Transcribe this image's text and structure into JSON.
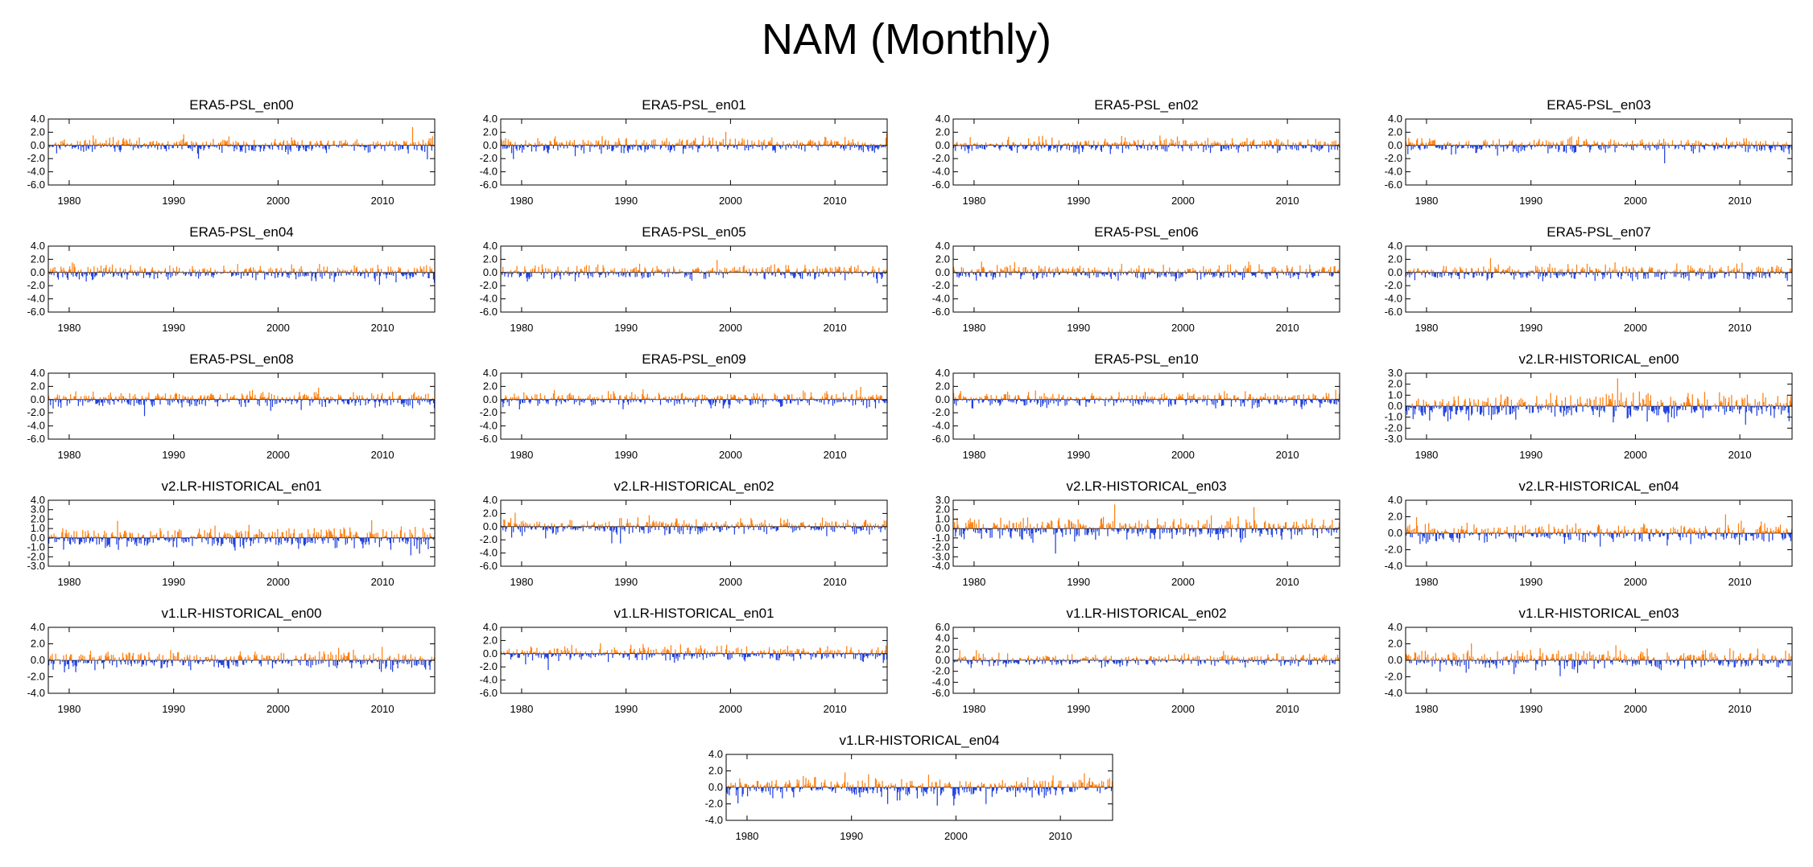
{
  "title": "NAM (Monthly)",
  "colors": {
    "positive": "#ff7f0e",
    "negative": "#1f3fdf",
    "axis": "#000000"
  },
  "chart_data": [
    {
      "type": "bar",
      "title": "ERA5-PSL_en00",
      "seed": 1,
      "ylim": [
        -6,
        4
      ],
      "yticks": [
        "4.0",
        "2.0",
        "0.0",
        "-2.0",
        "-4.0",
        "-6.0"
      ],
      "xlim": [
        1978,
        2015
      ],
      "xticks": [
        "1980",
        "1990",
        "2000",
        "2010"
      ]
    },
    {
      "type": "bar",
      "title": "ERA5-PSL_en01",
      "seed": 2,
      "ylim": [
        -6,
        4
      ],
      "yticks": [
        "4.0",
        "2.0",
        "0.0",
        "-2.0",
        "-4.0",
        "-6.0"
      ],
      "xlim": [
        1978,
        2015
      ],
      "xticks": [
        "1980",
        "1990",
        "2000",
        "2010"
      ]
    },
    {
      "type": "bar",
      "title": "ERA5-PSL_en02",
      "seed": 3,
      "ylim": [
        -6,
        4
      ],
      "yticks": [
        "4.0",
        "2.0",
        "0.0",
        "-2.0",
        "-4.0",
        "-6.0"
      ],
      "xlim": [
        1978,
        2015
      ],
      "xticks": [
        "1980",
        "1990",
        "2000",
        "2010"
      ]
    },
    {
      "type": "bar",
      "title": "ERA5-PSL_en03",
      "seed": 4,
      "ylim": [
        -6,
        4
      ],
      "yticks": [
        "4.0",
        "2.0",
        "0.0",
        "-2.0",
        "-4.0",
        "-6.0"
      ],
      "xlim": [
        1978,
        2015
      ],
      "xticks": [
        "1980",
        "1990",
        "2000",
        "2010"
      ]
    },
    {
      "type": "bar",
      "title": "ERA5-PSL_en04",
      "seed": 5,
      "ylim": [
        -6,
        4
      ],
      "yticks": [
        "4.0",
        "2.0",
        "0.0",
        "-2.0",
        "-4.0",
        "-6.0"
      ],
      "xlim": [
        1978,
        2015
      ],
      "xticks": [
        "1980",
        "1990",
        "2000",
        "2010"
      ]
    },
    {
      "type": "bar",
      "title": "ERA5-PSL_en05",
      "seed": 6,
      "ylim": [
        -6,
        4
      ],
      "yticks": [
        "4.0",
        "2.0",
        "0.0",
        "-2.0",
        "-4.0",
        "-6.0"
      ],
      "xlim": [
        1978,
        2015
      ],
      "xticks": [
        "1980",
        "1990",
        "2000",
        "2010"
      ]
    },
    {
      "type": "bar",
      "title": "ERA5-PSL_en06",
      "seed": 7,
      "ylim": [
        -6,
        4
      ],
      "yticks": [
        "4.0",
        "2.0",
        "0.0",
        "-2.0",
        "-4.0",
        "-6.0"
      ],
      "xlim": [
        1978,
        2015
      ],
      "xticks": [
        "1980",
        "1990",
        "2000",
        "2010"
      ]
    },
    {
      "type": "bar",
      "title": "ERA5-PSL_en07",
      "seed": 8,
      "ylim": [
        -6,
        4
      ],
      "yticks": [
        "4.0",
        "2.0",
        "0.0",
        "-2.0",
        "-4.0",
        "-6.0"
      ],
      "xlim": [
        1978,
        2015
      ],
      "xticks": [
        "1980",
        "1990",
        "2000",
        "2010"
      ]
    },
    {
      "type": "bar",
      "title": "ERA5-PSL_en08",
      "seed": 9,
      "ylim": [
        -6,
        4
      ],
      "yticks": [
        "4.0",
        "2.0",
        "0.0",
        "-2.0",
        "-4.0",
        "-6.0"
      ],
      "xlim": [
        1978,
        2015
      ],
      "xticks": [
        "1980",
        "1990",
        "2000",
        "2010"
      ]
    },
    {
      "type": "bar",
      "title": "ERA5-PSL_en09",
      "seed": 10,
      "ylim": [
        -6,
        4
      ],
      "yticks": [
        "4.0",
        "2.0",
        "0.0",
        "-2.0",
        "-4.0",
        "-6.0"
      ],
      "xlim": [
        1978,
        2015
      ],
      "xticks": [
        "1980",
        "1990",
        "2000",
        "2010"
      ]
    },
    {
      "type": "bar",
      "title": "ERA5-PSL_en10",
      "seed": 11,
      "ylim": [
        -6,
        4
      ],
      "yticks": [
        "4.0",
        "2.0",
        "0.0",
        "-2.0",
        "-4.0",
        "-6.0"
      ],
      "xlim": [
        1978,
        2015
      ],
      "xticks": [
        "1980",
        "1990",
        "2000",
        "2010"
      ]
    },
    {
      "type": "bar",
      "title": "v2.LR-HISTORICAL_en00",
      "seed": 12,
      "ylim": [
        -3,
        3
      ],
      "yticks": [
        "3.0",
        "2.0",
        "1.0",
        "0.0",
        "-1.0",
        "-2.0",
        "-3.0"
      ],
      "xlim": [
        1978,
        2015
      ],
      "xticks": [
        "1980",
        "1990",
        "2000",
        "2010"
      ]
    },
    {
      "type": "bar",
      "title": "v2.LR-HISTORICAL_en01",
      "seed": 13,
      "ylim": [
        -3,
        4
      ],
      "yticks": [
        "4.0",
        "3.0",
        "2.0",
        "1.0",
        "0.0",
        "-1.0",
        "-2.0",
        "-3.0"
      ],
      "xlim": [
        1978,
        2015
      ],
      "xticks": [
        "1980",
        "1990",
        "2000",
        "2010"
      ]
    },
    {
      "type": "bar",
      "title": "v2.LR-HISTORICAL_en02",
      "seed": 14,
      "ylim": [
        -6,
        4
      ],
      "yticks": [
        "4.0",
        "2.0",
        "0.0",
        "-2.0",
        "-4.0",
        "-6.0"
      ],
      "xlim": [
        1978,
        2015
      ],
      "xticks": [
        "1980",
        "1990",
        "2000",
        "2010"
      ]
    },
    {
      "type": "bar",
      "title": "v2.LR-HISTORICAL_en03",
      "seed": 15,
      "ylim": [
        -4,
        3
      ],
      "yticks": [
        "3.0",
        "2.0",
        "1.0",
        "0.0",
        "-1.0",
        "-2.0",
        "-3.0",
        "-4.0"
      ],
      "xlim": [
        1978,
        2015
      ],
      "xticks": [
        "1980",
        "1990",
        "2000",
        "2010"
      ]
    },
    {
      "type": "bar",
      "title": "v2.LR-HISTORICAL_en04",
      "seed": 16,
      "ylim": [
        -4,
        4
      ],
      "yticks": [
        "4.0",
        "2.0",
        "0.0",
        "-2.0",
        "-4.0"
      ],
      "xlim": [
        1978,
        2015
      ],
      "xticks": [
        "1980",
        "1990",
        "2000",
        "2010"
      ]
    },
    {
      "type": "bar",
      "title": "v1.LR-HISTORICAL_en00",
      "seed": 17,
      "ylim": [
        -4,
        4
      ],
      "yticks": [
        "4.0",
        "2.0",
        "0.0",
        "-2.0",
        "-4.0"
      ],
      "xlim": [
        1978,
        2015
      ],
      "xticks": [
        "1980",
        "1990",
        "2000",
        "2010"
      ]
    },
    {
      "type": "bar",
      "title": "v1.LR-HISTORICAL_en01",
      "seed": 18,
      "ylim": [
        -6,
        4
      ],
      "yticks": [
        "4.0",
        "2.0",
        "0.0",
        "-2.0",
        "-4.0",
        "-6.0"
      ],
      "xlim": [
        1978,
        2015
      ],
      "xticks": [
        "1980",
        "1990",
        "2000",
        "2010"
      ]
    },
    {
      "type": "bar",
      "title": "v1.LR-HISTORICAL_en02",
      "seed": 19,
      "ylim": [
        -6,
        6
      ],
      "yticks": [
        "6.0",
        "4.0",
        "2.0",
        "0.0",
        "-2.0",
        "-4.0",
        "-6.0"
      ],
      "xlim": [
        1978,
        2015
      ],
      "xticks": [
        "1980",
        "1990",
        "2000",
        "2010"
      ]
    },
    {
      "type": "bar",
      "title": "v1.LR-HISTORICAL_en03",
      "seed": 20,
      "ylim": [
        -4,
        4
      ],
      "yticks": [
        "4.0",
        "2.0",
        "0.0",
        "-2.0",
        "-4.0"
      ],
      "xlim": [
        1978,
        2015
      ],
      "xticks": [
        "1980",
        "1990",
        "2000",
        "2010"
      ]
    },
    {
      "type": "bar",
      "title": "v1.LR-HISTORICAL_en04",
      "seed": 21,
      "ylim": [
        -4,
        4
      ],
      "yticks": [
        "4.0",
        "2.0",
        "0.0",
        "-2.0",
        "-4.0"
      ],
      "xlim": [
        1978,
        2015
      ],
      "xticks": [
        "1980",
        "1990",
        "2000",
        "2010"
      ]
    }
  ]
}
